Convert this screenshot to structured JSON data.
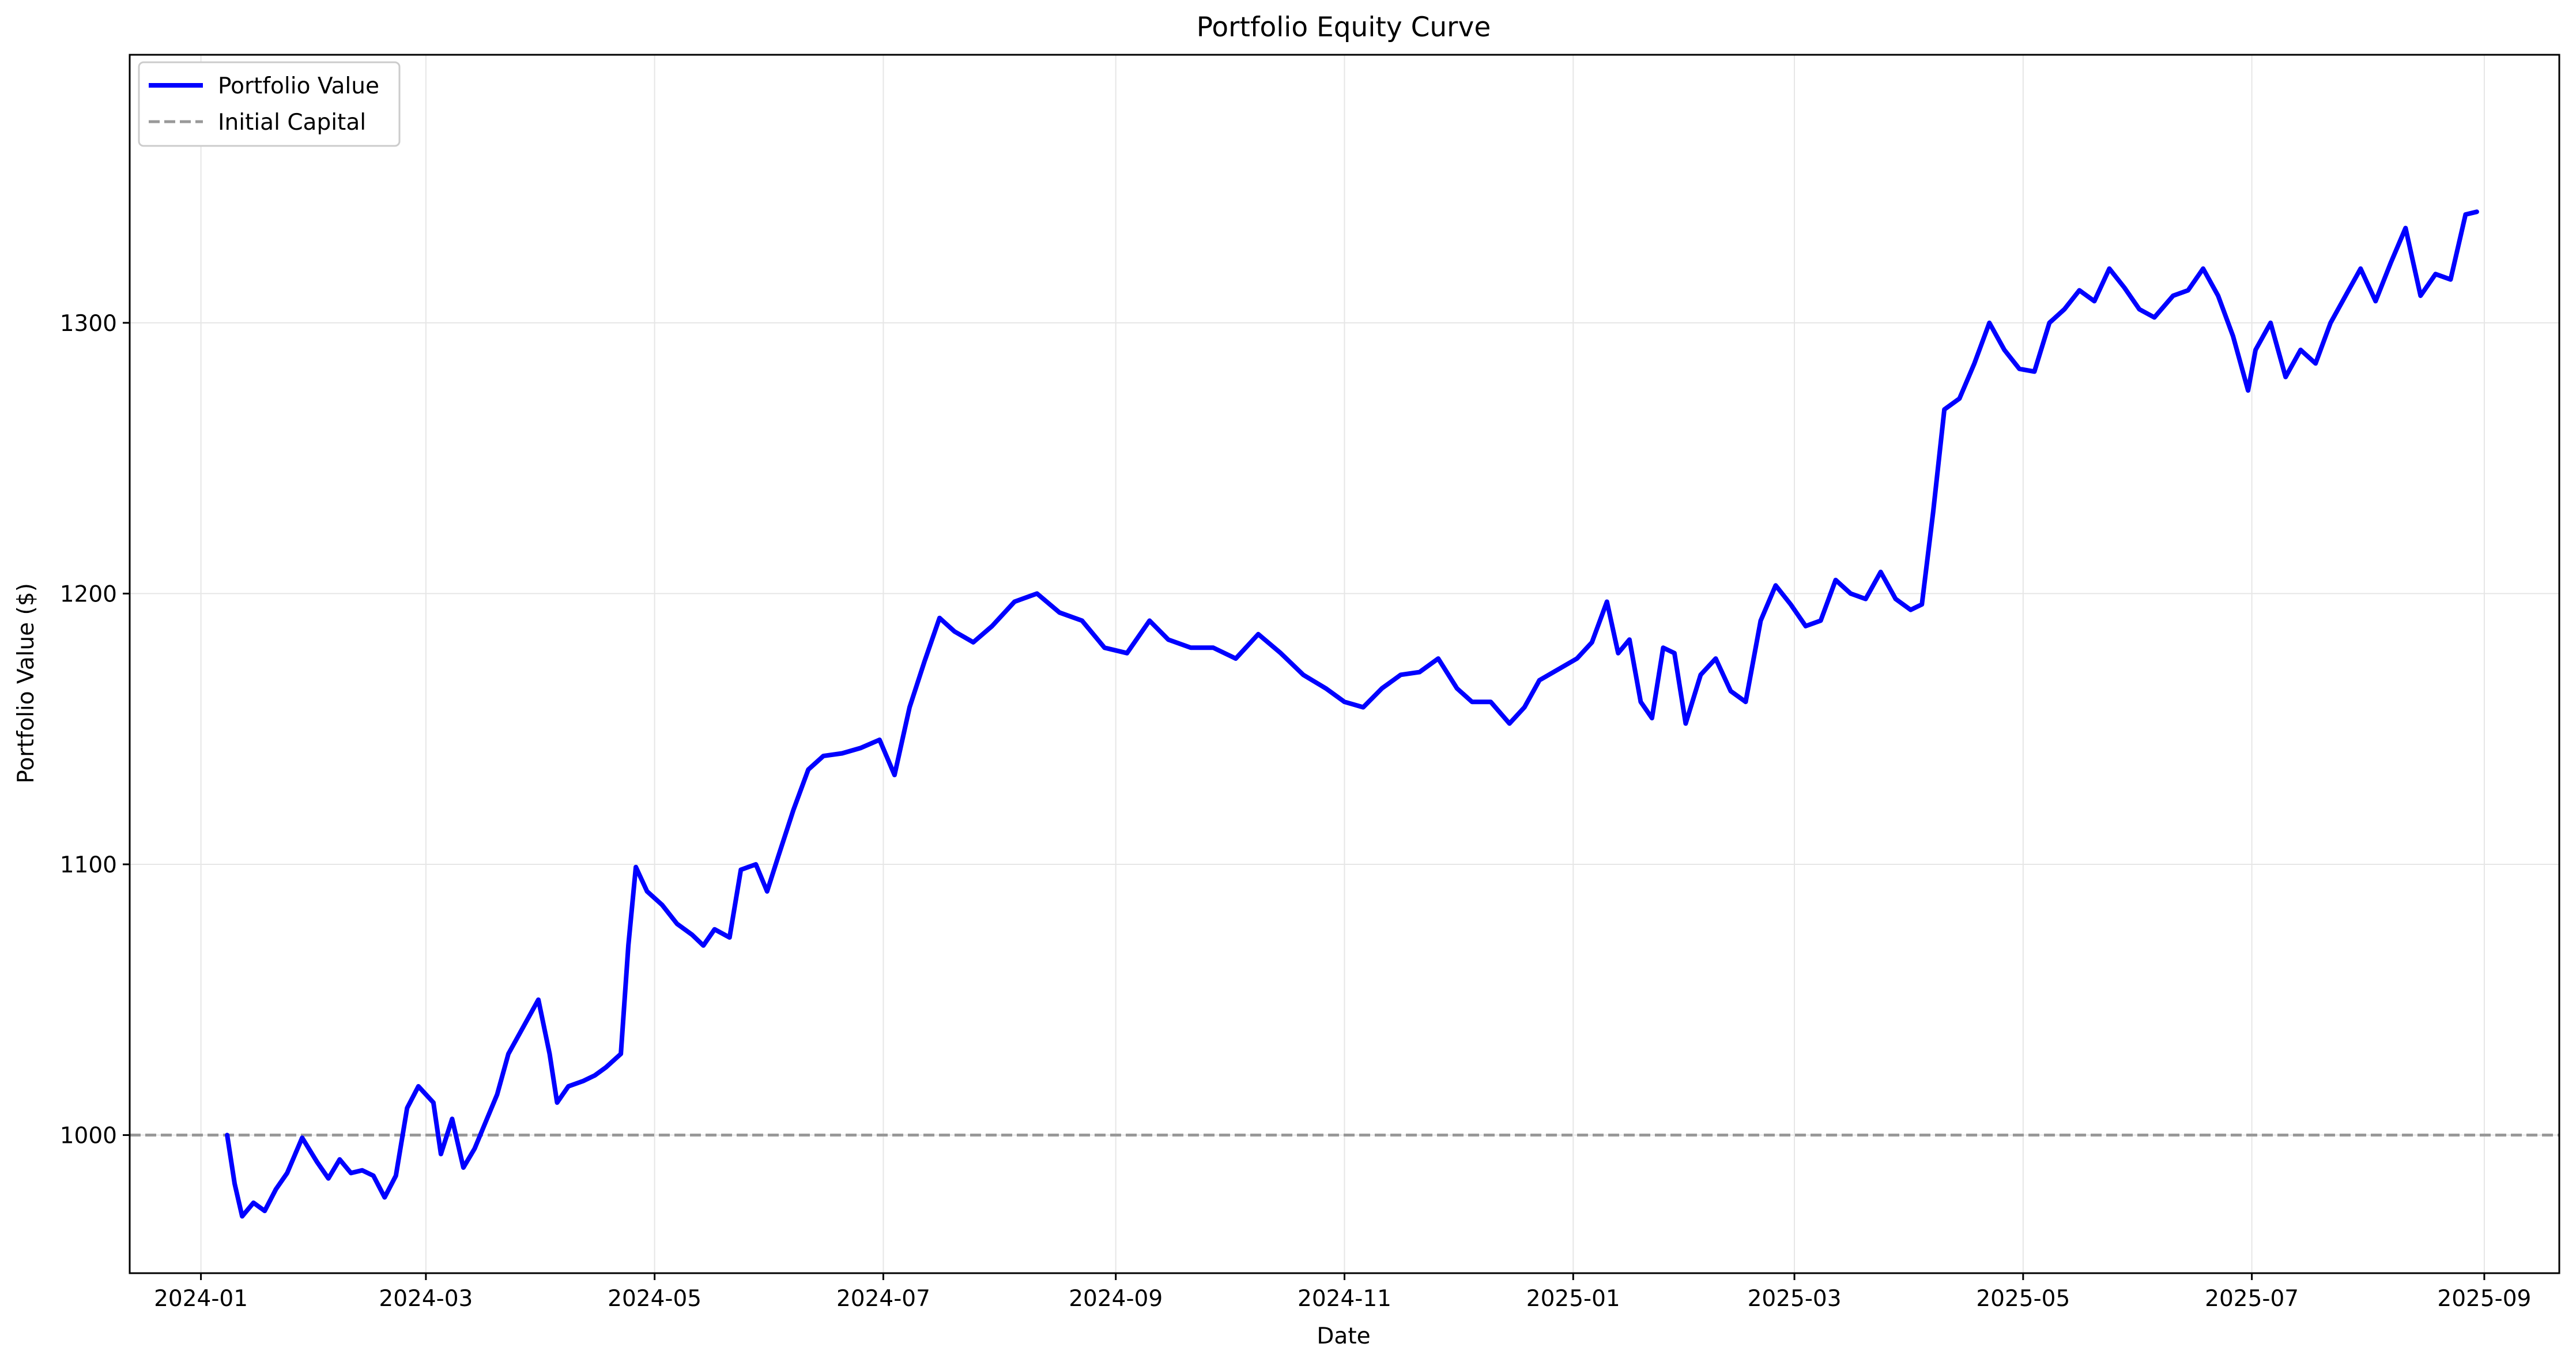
{
  "chart_data": {
    "type": "line",
    "title": "Portfolio Equity Curve",
    "xlabel": "Date",
    "ylabel": "Portfolio Value ($)",
    "x_ticks": [
      "2024-01",
      "2024-03",
      "2024-05",
      "2024-07",
      "2024-09",
      "2024-11",
      "2025-01",
      "2025-03",
      "2025-05",
      "2025-07",
      "2025-09"
    ],
    "y_ticks": [
      1000,
      1100,
      1200,
      1300
    ],
    "xlim": [
      "2023-12-13",
      "2025-09-21"
    ],
    "ylim": [
      949,
      1399
    ],
    "grid": true,
    "legend_position": "top-left",
    "series": [
      {
        "name": "Portfolio Value",
        "color": "#0000ff",
        "style": "solid",
        "points": [
          [
            "2024-01-08",
            1000
          ],
          [
            "2024-01-10",
            982
          ],
          [
            "2024-01-12",
            970
          ],
          [
            "2024-01-15",
            975
          ],
          [
            "2024-01-18",
            972
          ],
          [
            "2024-01-21",
            980
          ],
          [
            "2024-01-24",
            986
          ],
          [
            "2024-01-28",
            999
          ],
          [
            "2024-02-01",
            990
          ],
          [
            "2024-02-04",
            984
          ],
          [
            "2024-02-07",
            991
          ],
          [
            "2024-02-10",
            986
          ],
          [
            "2024-02-13",
            987
          ],
          [
            "2024-02-16",
            985
          ],
          [
            "2024-02-19",
            977
          ],
          [
            "2024-02-22",
            985
          ],
          [
            "2024-02-25",
            1010
          ],
          [
            "2024-02-28",
            1018
          ],
          [
            "2024-03-03",
            1012
          ],
          [
            "2024-03-05",
            993
          ],
          [
            "2024-03-08",
            1006
          ],
          [
            "2024-03-11",
            988
          ],
          [
            "2024-03-14",
            995
          ],
          [
            "2024-03-17",
            1005
          ],
          [
            "2024-03-20",
            1015
          ],
          [
            "2024-03-23",
            1030
          ],
          [
            "2024-03-27",
            1040
          ],
          [
            "2024-03-31",
            1050
          ],
          [
            "2024-04-03",
            1030
          ],
          [
            "2024-04-05",
            1012
          ],
          [
            "2024-04-08",
            1018
          ],
          [
            "2024-04-12",
            1020
          ],
          [
            "2024-04-15",
            1022
          ],
          [
            "2024-04-18",
            1025
          ],
          [
            "2024-04-22",
            1030
          ],
          [
            "2024-04-24",
            1070
          ],
          [
            "2024-04-26",
            1099
          ],
          [
            "2024-04-29",
            1090
          ],
          [
            "2024-05-03",
            1085
          ],
          [
            "2024-05-07",
            1078
          ],
          [
            "2024-05-11",
            1074
          ],
          [
            "2024-05-14",
            1070
          ],
          [
            "2024-05-17",
            1076
          ],
          [
            "2024-05-21",
            1073
          ],
          [
            "2024-05-24",
            1098
          ],
          [
            "2024-05-28",
            1100
          ],
          [
            "2024-05-31",
            1090
          ],
          [
            "2024-06-03",
            1103
          ],
          [
            "2024-06-07",
            1120
          ],
          [
            "2024-06-11",
            1135
          ],
          [
            "2024-06-15",
            1140
          ],
          [
            "2024-06-20",
            1141
          ],
          [
            "2024-06-25",
            1143
          ],
          [
            "2024-06-30",
            1146
          ],
          [
            "2024-07-04",
            1133
          ],
          [
            "2024-07-08",
            1158
          ],
          [
            "2024-07-12",
            1175
          ],
          [
            "2024-07-16",
            1191
          ],
          [
            "2024-07-20",
            1186
          ],
          [
            "2024-07-25",
            1182
          ],
          [
            "2024-07-30",
            1188
          ],
          [
            "2024-08-05",
            1197
          ],
          [
            "2024-08-11",
            1200
          ],
          [
            "2024-08-17",
            1193
          ],
          [
            "2024-08-23",
            1190
          ],
          [
            "2024-08-29",
            1180
          ],
          [
            "2024-09-04",
            1178
          ],
          [
            "2024-09-10",
            1190
          ],
          [
            "2024-09-15",
            1183
          ],
          [
            "2024-09-21",
            1180
          ],
          [
            "2024-09-27",
            1180
          ],
          [
            "2024-10-03",
            1176
          ],
          [
            "2024-10-09",
            1185
          ],
          [
            "2024-10-15",
            1178
          ],
          [
            "2024-10-21",
            1170
          ],
          [
            "2024-10-27",
            1165
          ],
          [
            "2024-11-01",
            1160
          ],
          [
            "2024-11-06",
            1158
          ],
          [
            "2024-11-11",
            1165
          ],
          [
            "2024-11-16",
            1170
          ],
          [
            "2024-11-21",
            1171
          ],
          [
            "2024-11-26",
            1176
          ],
          [
            "2024-12-01",
            1165
          ],
          [
            "2024-12-05",
            1160
          ],
          [
            "2024-12-10",
            1160
          ],
          [
            "2024-12-15",
            1152
          ],
          [
            "2024-12-19",
            1158
          ],
          [
            "2024-12-23",
            1168
          ],
          [
            "2024-12-28",
            1172
          ],
          [
            "2025-01-02",
            1176
          ],
          [
            "2025-01-06",
            1182
          ],
          [
            "2025-01-10",
            1197
          ],
          [
            "2025-01-13",
            1178
          ],
          [
            "2025-01-16",
            1183
          ],
          [
            "2025-01-19",
            1160
          ],
          [
            "2025-01-22",
            1154
          ],
          [
            "2025-01-25",
            1180
          ],
          [
            "2025-01-28",
            1178
          ],
          [
            "2025-01-31",
            1152
          ],
          [
            "2025-02-04",
            1170
          ],
          [
            "2025-02-08",
            1176
          ],
          [
            "2025-02-12",
            1164
          ],
          [
            "2025-02-16",
            1160
          ],
          [
            "2025-02-20",
            1190
          ],
          [
            "2025-02-24",
            1203
          ],
          [
            "2025-02-28",
            1196
          ],
          [
            "2025-03-04",
            1188
          ],
          [
            "2025-03-08",
            1190
          ],
          [
            "2025-03-12",
            1205
          ],
          [
            "2025-03-16",
            1200
          ],
          [
            "2025-03-20",
            1198
          ],
          [
            "2025-03-24",
            1208
          ],
          [
            "2025-03-28",
            1198
          ],
          [
            "2025-04-01",
            1194
          ],
          [
            "2025-04-04",
            1196
          ],
          [
            "2025-04-07",
            1230
          ],
          [
            "2025-04-10",
            1268
          ],
          [
            "2025-04-14",
            1272
          ],
          [
            "2025-04-18",
            1285
          ],
          [
            "2025-04-22",
            1300
          ],
          [
            "2025-04-26",
            1290
          ],
          [
            "2025-04-30",
            1283
          ],
          [
            "2025-05-04",
            1282
          ],
          [
            "2025-05-08",
            1300
          ],
          [
            "2025-05-12",
            1305
          ],
          [
            "2025-05-16",
            1312
          ],
          [
            "2025-05-20",
            1308
          ],
          [
            "2025-05-24",
            1320
          ],
          [
            "2025-05-28",
            1313
          ],
          [
            "2025-06-01",
            1305
          ],
          [
            "2025-06-05",
            1302
          ],
          [
            "2025-06-10",
            1310
          ],
          [
            "2025-06-14",
            1312
          ],
          [
            "2025-06-18",
            1320
          ],
          [
            "2025-06-22",
            1310
          ],
          [
            "2025-06-26",
            1295
          ],
          [
            "2025-06-30",
            1275
          ],
          [
            "2025-07-02",
            1290
          ],
          [
            "2025-07-06",
            1300
          ],
          [
            "2025-07-10",
            1280
          ],
          [
            "2025-07-14",
            1290
          ],
          [
            "2025-07-18",
            1285
          ],
          [
            "2025-07-22",
            1300
          ],
          [
            "2025-07-26",
            1310
          ],
          [
            "2025-07-30",
            1320
          ],
          [
            "2025-08-03",
            1308
          ],
          [
            "2025-08-07",
            1322
          ],
          [
            "2025-08-11",
            1335
          ],
          [
            "2025-08-15",
            1310
          ],
          [
            "2025-08-19",
            1318
          ],
          [
            "2025-08-23",
            1316
          ],
          [
            "2025-08-27",
            1340
          ],
          [
            "2025-08-30",
            1341
          ]
        ]
      },
      {
        "name": "Initial Capital",
        "color": "#999999",
        "style": "dashed",
        "value": 1000
      }
    ]
  }
}
